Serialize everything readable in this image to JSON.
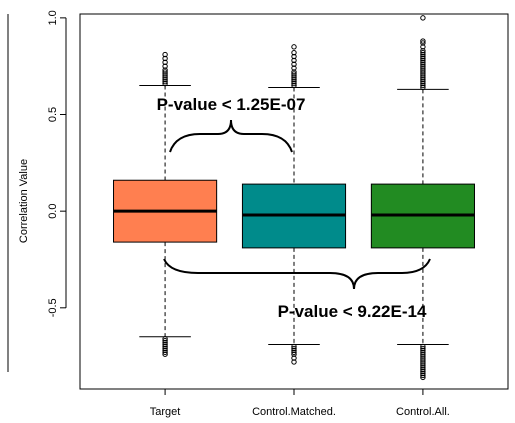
{
  "chart_data": {
    "type": "box",
    "title": "",
    "xlabel": "",
    "ylabel": "Correlation Value",
    "ylim": [
      -0.92,
      1.02
    ],
    "yticks": [
      -0.5,
      0.0,
      0.5,
      1.0
    ],
    "ytick_labels": [
      "-0.5",
      "0.0",
      "0.5",
      "1.0"
    ],
    "grid": false,
    "legend": "none",
    "categories": [
      "Target",
      "Control.Matched.",
      "Control.All."
    ],
    "boxes": [
      {
        "category": "Target",
        "color": "#FF7F50",
        "whisker_low": -0.65,
        "q1": -0.16,
        "median": 0.0,
        "q3": 0.16,
        "whisker_high": 0.65,
        "outliers_low": [
          -0.66,
          -0.67,
          -0.68,
          -0.69,
          -0.7,
          -0.71,
          -0.72,
          -0.73,
          -0.74
        ],
        "outliers_high": [
          0.66,
          0.67,
          0.68,
          0.69,
          0.7,
          0.71,
          0.72,
          0.73,
          0.75,
          0.77,
          0.79,
          0.81
        ]
      },
      {
        "category": "Control.Matched.",
        "color": "#008B8B",
        "whisker_low": -0.69,
        "q1": -0.19,
        "median": -0.02,
        "q3": 0.14,
        "whisker_high": 0.64,
        "outliers_low": [
          -0.7,
          -0.71,
          -0.72,
          -0.73,
          -0.74,
          -0.76,
          -0.78
        ],
        "outliers_high": [
          0.65,
          0.66,
          0.67,
          0.68,
          0.69,
          0.7,
          0.71,
          0.72,
          0.74,
          0.76,
          0.78,
          0.8,
          0.82,
          0.85
        ]
      },
      {
        "category": "Control.All.",
        "color": "#228B22",
        "whisker_low": -0.69,
        "q1": -0.19,
        "median": -0.02,
        "q3": 0.14,
        "whisker_high": 0.63,
        "outliers_low": [
          -0.7,
          -0.71,
          -0.72,
          -0.73,
          -0.74,
          -0.75,
          -0.76,
          -0.77,
          -0.78,
          -0.79,
          -0.8,
          -0.81,
          -0.82,
          -0.83,
          -0.84,
          -0.85,
          -0.86
        ],
        "outliers_high": [
          0.64,
          0.65,
          0.66,
          0.67,
          0.68,
          0.69,
          0.7,
          0.71,
          0.72,
          0.73,
          0.74,
          0.75,
          0.76,
          0.77,
          0.78,
          0.79,
          0.8,
          0.81,
          0.82,
          0.83,
          0.85,
          0.87,
          0.88,
          1.0
        ]
      }
    ],
    "annotations": [
      {
        "text": "P-value < 1.25E-07",
        "between": [
          "Target",
          "Control.Matched."
        ],
        "position": "above"
      },
      {
        "text": "P-value < 9.22E-14",
        "between": [
          "Target",
          "Control.All."
        ],
        "position": "below"
      }
    ]
  }
}
